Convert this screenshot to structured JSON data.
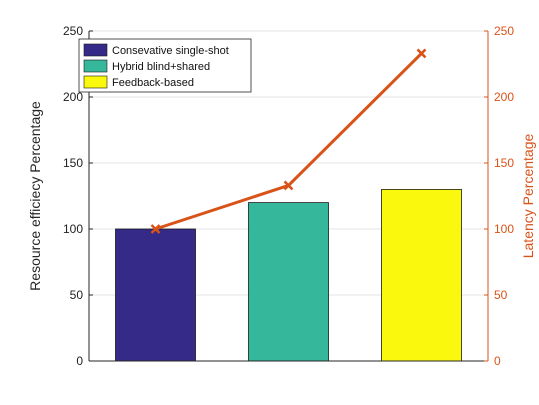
{
  "chart_data": {
    "type": "bar",
    "categories": [
      "Consevative single-shot",
      "Hybrid blind+shared",
      "Feedback-based"
    ],
    "series": [
      {
        "name": "Resource efficiecy Percentage",
        "axis": "left",
        "kind": "bar",
        "values": [
          100,
          120,
          130
        ],
        "colors": [
          "#352a87",
          "#35b79b",
          "#f9f80d"
        ]
      },
      {
        "name": "Latency Percentage",
        "axis": "right",
        "kind": "line",
        "marker": "x",
        "color": "#d95319",
        "values": [
          100,
          133,
          233
        ]
      }
    ],
    "ylabel": "Resource efficiecy Percentage",
    "y2label": "Latency Percentage",
    "ylim": [
      0,
      250
    ],
    "y2lim": [
      0,
      250
    ],
    "yticks": [
      "0",
      "50",
      "100",
      "150",
      "200",
      "250"
    ],
    "y2ticks": [
      "0",
      "50",
      "100",
      "150",
      "200",
      "250"
    ],
    "grid": "horizontal",
    "legend": {
      "placement": "top-left",
      "entries": [
        "Consevative single-shot",
        "Hybrid blind+shared",
        "Feedback-based"
      ]
    }
  },
  "colors": {
    "left_axis": "#262626",
    "right_axis": "#d95319",
    "grid": "#e6e6e6"
  }
}
